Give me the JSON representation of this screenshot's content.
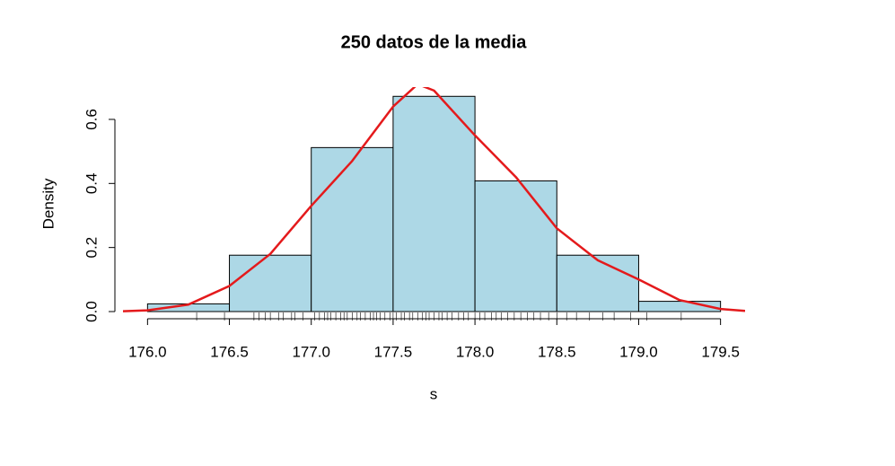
{
  "chart_data": {
    "type": "histogram",
    "title": "250 datos de la media",
    "xlabel": "s",
    "ylabel": "Density",
    "bins": [
      176.0,
      176.5,
      177.0,
      177.5,
      178.0,
      178.5,
      179.0,
      179.5
    ],
    "values": [
      0.024,
      0.176,
      0.512,
      0.672,
      0.408,
      0.176,
      0.032
    ],
    "color": "#add8e6",
    "density": {
      "color": "#e41a1c",
      "x": [
        175.85,
        176.0,
        176.25,
        176.5,
        176.75,
        177.0,
        177.25,
        177.5,
        177.65,
        177.75,
        178.0,
        178.25,
        178.5,
        178.75,
        179.0,
        179.25,
        179.5,
        179.65
      ],
      "y": [
        0.001,
        0.004,
        0.022,
        0.08,
        0.18,
        0.33,
        0.47,
        0.64,
        0.71,
        0.69,
        0.55,
        0.42,
        0.26,
        0.16,
        0.1,
        0.036,
        0.008,
        0.002
      ]
    },
    "rug": [
      176.3,
      176.47,
      176.65,
      176.68,
      176.72,
      176.75,
      176.8,
      176.83,
      176.88,
      176.9,
      176.95,
      177.02,
      177.05,
      177.08,
      177.1,
      177.12,
      177.15,
      177.18,
      177.2,
      177.22,
      177.25,
      177.28,
      177.3,
      177.33,
      177.36,
      177.38,
      177.4,
      177.42,
      177.45,
      177.48,
      177.5,
      177.52,
      177.55,
      177.57,
      177.6,
      177.62,
      177.65,
      177.68,
      177.7,
      177.72,
      177.75,
      177.78,
      177.8,
      177.83,
      177.86,
      177.9,
      177.93,
      177.96,
      178.0,
      178.03,
      178.06,
      178.1,
      178.13,
      178.16,
      178.2,
      178.24,
      178.28,
      178.32,
      178.36,
      178.4,
      178.45,
      178.5,
      178.56,
      178.62,
      178.7,
      178.78,
      178.85,
      178.95,
      179.05,
      179.26
    ],
    "xlim": [
      175.85,
      179.65
    ],
    "ylim": [
      0,
      0.7
    ],
    "xticks": [
      {
        "value": 176,
        "label": "176.0"
      },
      176.5,
      {
        "value": 177,
        "label": "177.0"
      },
      177.5,
      {
        "value": 178,
        "label": "178.0"
      },
      178.5,
      {
        "value": 179,
        "label": "179.0"
      },
      179.5
    ],
    "yticks": [
      {
        "value": 0,
        "label": "0.0"
      },
      0.2,
      0.4,
      0.6
    ]
  }
}
